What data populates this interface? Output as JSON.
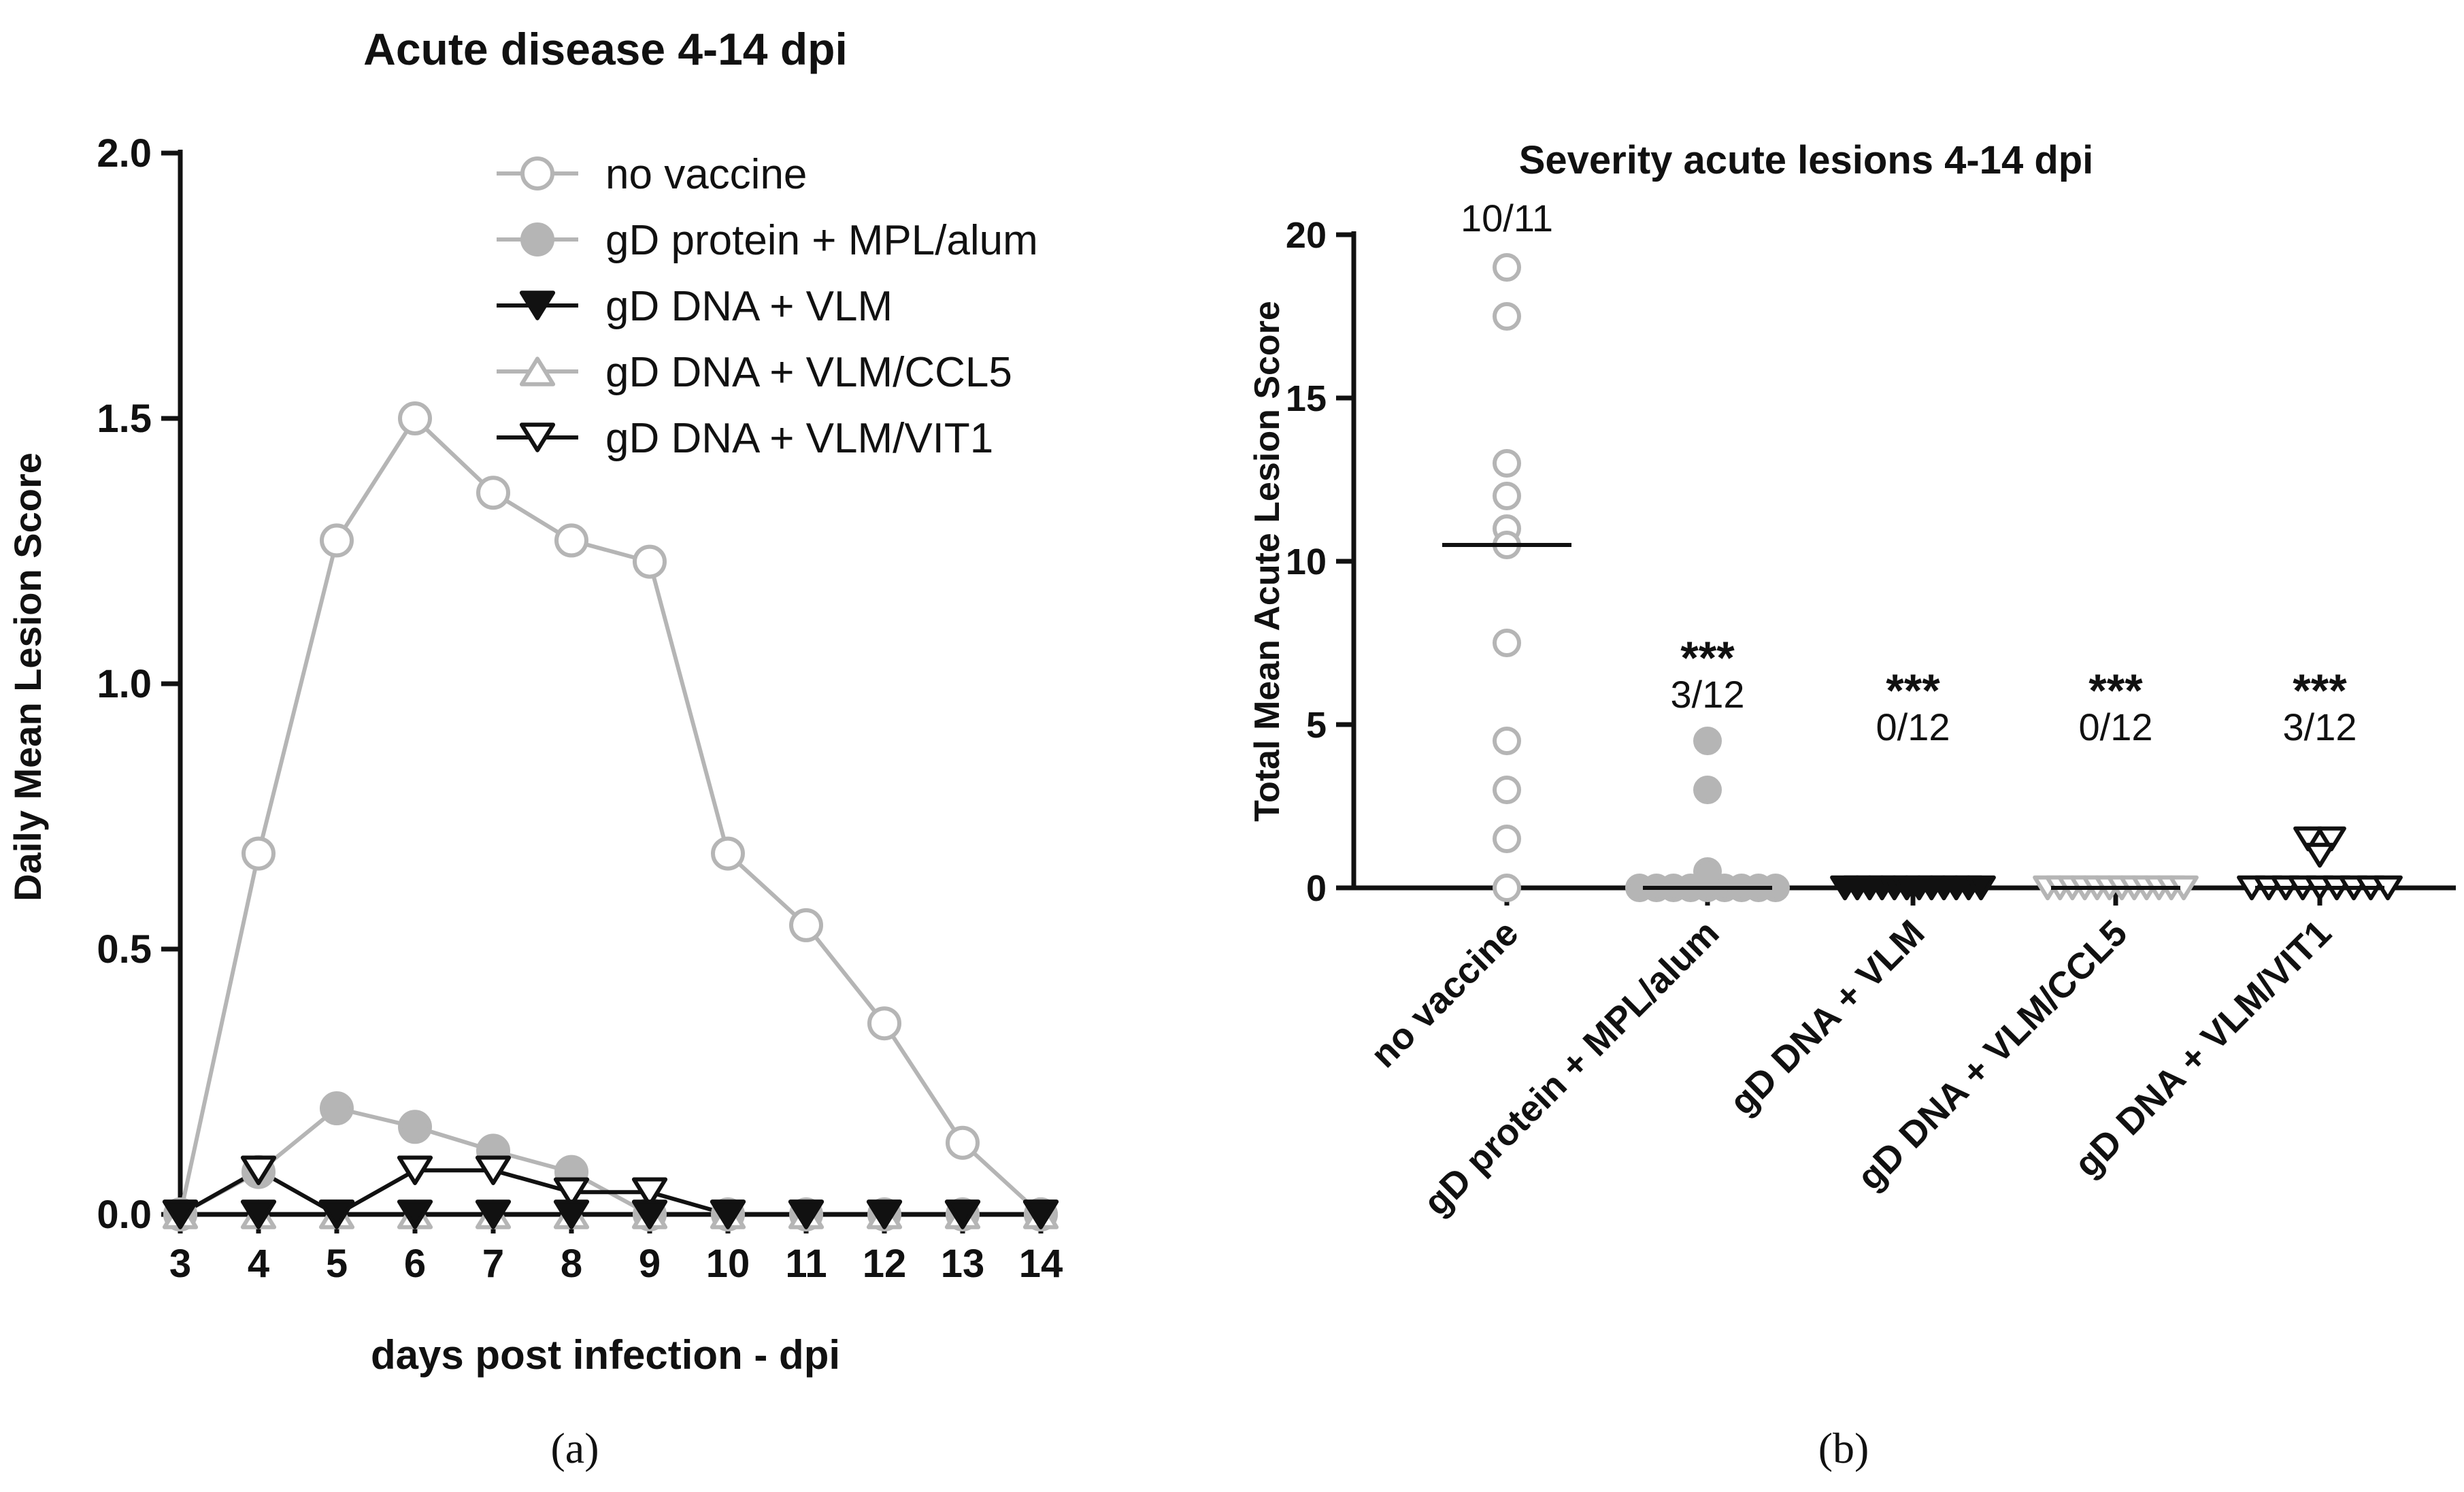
{
  "colors": {
    "gray": "#b5b5b5",
    "black": "#111111",
    "axis": "#111111"
  },
  "chart_data": [
    {
      "type": "line",
      "title": "Acute disease 4-14 dpi",
      "xlabel": "days post infection - dpi",
      "ylabel": "Daily Mean Lesion Score",
      "x": [
        3,
        4,
        5,
        6,
        7,
        8,
        9,
        10,
        11,
        12,
        13,
        14
      ],
      "xlim": [
        3,
        14
      ],
      "ylim": [
        0,
        2
      ],
      "yticks": [
        "0.0",
        "0.5",
        "1.0",
        "1.5",
        "2.0"
      ],
      "legend_position": "top-right",
      "series": [
        {
          "name": "no vaccine",
          "marker": "circle-open",
          "color": "#b5b5b5",
          "values": [
            0,
            0.68,
            1.27,
            1.5,
            1.36,
            1.27,
            1.23,
            0.68,
            0.545,
            0.36,
            0.135,
            0
          ]
        },
        {
          "name": "gD protein + MPL/alum",
          "marker": "circle-filled",
          "color": "#b5b5b5",
          "values": [
            0,
            0.08,
            0.2,
            0.165,
            0.12,
            0.08,
            0,
            0,
            0,
            0,
            0,
            0
          ]
        },
        {
          "name": "gD DNA + VLM",
          "marker": "triangle-down-filled",
          "color": "#111111",
          "values": [
            0,
            0,
            0,
            0,
            0,
            0,
            0,
            0,
            0,
            0,
            0,
            0
          ]
        },
        {
          "name": "gD DNA + VLM/CCL5",
          "marker": "triangle-up-open",
          "color": "#b5b5b5",
          "values": [
            0,
            0,
            0,
            0,
            0,
            0,
            0,
            0,
            0,
            0,
            0,
            0
          ]
        },
        {
          "name": "gD DNA + VLM/VIT1",
          "marker": "triangle-down-open",
          "color": "#111111",
          "values": [
            0,
            0.083,
            0,
            0.083,
            0.083,
            0.042,
            0.042,
            0,
            0,
            0,
            0,
            0
          ]
        }
      ],
      "caption": "(a)"
    },
    {
      "type": "scatter",
      "title": "Severity acute lesions 4-14 dpi",
      "ylabel": "Total Mean Acute Lesion Score",
      "ylim": [
        0,
        20
      ],
      "yticks": [
        "0",
        "5",
        "10",
        "15",
        "20"
      ],
      "categories": [
        "no vaccine",
        "gD protein + MPL/alum",
        "gD DNA + VLM",
        "gD DNA + VLM/CCL5",
        "gD DNA + VLM/VIT1"
      ],
      "groups": [
        {
          "name": "no vaccine",
          "marker": "circle-open",
          "color": "#b5b5b5",
          "values": [
            19,
            17.5,
            13,
            12,
            11,
            10.5,
            7.5,
            4.5,
            3,
            1.5,
            0
          ],
          "median": 10.5,
          "fraction": "10/11",
          "stars": ""
        },
        {
          "name": "gD protein + MPL/alum",
          "marker": "circle-filled",
          "color": "#b5b5b5",
          "values": [
            4.5,
            3,
            0.5,
            0,
            0,
            0,
            0,
            0,
            0,
            0,
            0,
            0
          ],
          "median": 0,
          "fraction": "3/12",
          "stars": "***"
        },
        {
          "name": "gD DNA + VLM",
          "marker": "triangle-down-filled",
          "color": "#111111",
          "values": [
            0,
            0,
            0,
            0,
            0,
            0,
            0,
            0,
            0,
            0,
            0,
            0
          ],
          "median": 0,
          "fraction": "0/12",
          "stars": "***"
        },
        {
          "name": "gD DNA + VLM/CCL5",
          "marker": "triangle-down-open",
          "color": "#b5b5b5",
          "values": [
            0,
            0,
            0,
            0,
            0,
            0,
            0,
            0,
            0,
            0,
            0,
            0
          ],
          "median": 0,
          "fraction": "0/12",
          "stars": "***"
        },
        {
          "name": "gD DNA + VLM/VIT1",
          "marker": "triangle-down-open",
          "color": "#111111",
          "values": [
            1.5,
            1.5,
            1,
            0,
            0,
            0,
            0,
            0,
            0,
            0,
            0,
            0
          ],
          "median": 0,
          "fraction": "3/12",
          "stars": "***"
        }
      ],
      "caption": "(b)"
    }
  ]
}
